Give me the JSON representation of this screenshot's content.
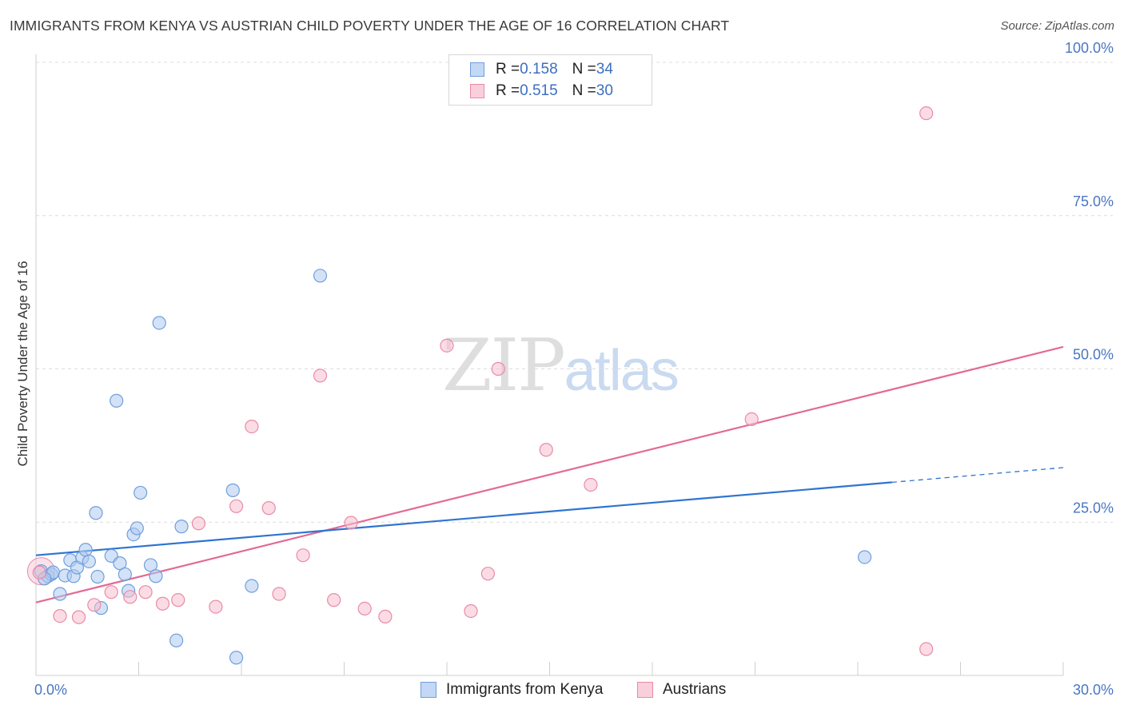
{
  "title": "IMMIGRANTS FROM KENYA VS AUSTRIAN CHILD POVERTY UNDER THE AGE OF 16 CORRELATION CHART",
  "source": "Source: ZipAtlas.com",
  "watermark": {
    "zip": "ZIP",
    "atlas": "atlas"
  },
  "legend": {
    "rows": [
      {
        "r_label": "R = ",
        "r_value": "0.158",
        "n_label": "N = ",
        "n_value": "34"
      },
      {
        "r_label": "R = ",
        "r_value": "0.515",
        "n_label": "N = ",
        "n_value": "30"
      }
    ]
  },
  "bottom_legend": [
    "Immigrants from Kenya",
    "Austrians"
  ],
  "colors": {
    "blue_fill": "#aecbf1",
    "blue_stroke": "#6f9fdc",
    "blue_line": "#2f74d0",
    "pink_fill": "#f7bfd0",
    "pink_stroke": "#e98aa8",
    "pink_line": "#e36a96",
    "grid": "#dcdcdc",
    "axis_label": "#4a76c4"
  },
  "chart_data": {
    "type": "scatter",
    "title": "IMMIGRANTS FROM KENYA VS AUSTRIAN CHILD POVERTY UNDER THE AGE OF 16 CORRELATION CHART",
    "xlabel": "",
    "ylabel": "Child Poverty Under the Age of 16",
    "xlim": [
      0,
      30
    ],
    "ylim": [
      0,
      100
    ],
    "x_tick_labels": [
      "0.0%",
      "30.0%"
    ],
    "y_ticks": [
      25,
      50,
      75,
      100
    ],
    "y_tick_labels": [
      "25.0%",
      "50.0%",
      "75.0%",
      "100.0%"
    ],
    "grid": true,
    "legend_position": "top-center",
    "series": [
      {
        "name": "Immigrants from Kenya",
        "R": 0.158,
        "N": 34,
        "points": [
          [
            0.15,
            17.0
          ],
          [
            0.35,
            16.2
          ],
          [
            0.45,
            16.5
          ],
          [
            0.5,
            16.8
          ],
          [
            0.7,
            13.3
          ],
          [
            0.85,
            16.3
          ],
          [
            1.0,
            18.8
          ],
          [
            1.1,
            16.2
          ],
          [
            1.2,
            17.6
          ],
          [
            1.35,
            19.2
          ],
          [
            1.45,
            20.5
          ],
          [
            1.55,
            18.6
          ],
          [
            1.75,
            26.5
          ],
          [
            1.8,
            16.1
          ],
          [
            1.9,
            11.0
          ],
          [
            2.2,
            19.5
          ],
          [
            2.35,
            44.8
          ],
          [
            2.45,
            18.3
          ],
          [
            2.6,
            16.5
          ],
          [
            2.7,
            13.8
          ],
          [
            2.85,
            23.0
          ],
          [
            2.95,
            24.0
          ],
          [
            3.05,
            29.8
          ],
          [
            3.35,
            18.0
          ],
          [
            3.5,
            16.2
          ],
          [
            3.6,
            57.5
          ],
          [
            4.1,
            5.7
          ],
          [
            4.25,
            24.3
          ],
          [
            5.75,
            30.2
          ],
          [
            5.85,
            2.9
          ],
          [
            6.3,
            14.6
          ],
          [
            8.3,
            65.2
          ],
          [
            24.2,
            19.3
          ],
          [
            0.25,
            15.8
          ]
        ]
      },
      {
        "name": "Austrians",
        "R": 0.515,
        "N": 30,
        "points": [
          [
            0.1,
            16.8
          ],
          [
            0.7,
            9.7
          ],
          [
            1.25,
            9.5
          ],
          [
            1.7,
            11.5
          ],
          [
            2.2,
            13.6
          ],
          [
            2.75,
            12.8
          ],
          [
            3.2,
            13.6
          ],
          [
            3.7,
            11.7
          ],
          [
            4.15,
            12.3
          ],
          [
            4.75,
            24.8
          ],
          [
            5.25,
            11.2
          ],
          [
            5.85,
            27.6
          ],
          [
            6.3,
            40.6
          ],
          [
            6.8,
            27.3
          ],
          [
            7.1,
            13.3
          ],
          [
            7.8,
            19.6
          ],
          [
            8.3,
            48.9
          ],
          [
            8.7,
            12.3
          ],
          [
            9.2,
            24.9
          ],
          [
            9.6,
            10.9
          ],
          [
            10.2,
            9.6
          ],
          [
            12.0,
            53.8
          ],
          [
            12.7,
            10.5
          ],
          [
            13.2,
            16.6
          ],
          [
            13.5,
            50.0
          ],
          [
            14.9,
            36.8
          ],
          [
            16.2,
            31.1
          ],
          [
            20.9,
            41.8
          ],
          [
            26.0,
            91.7
          ],
          [
            26.0,
            4.3
          ]
        ]
      }
    ],
    "trendlines": [
      {
        "series": "Immigrants from Kenya",
        "x": [
          0,
          25
        ],
        "y": [
          19.6,
          31.5
        ],
        "dashed_to": [
          30,
          33.9
        ]
      },
      {
        "series": "Austrians",
        "x": [
          0,
          30
        ],
        "y": [
          11.9,
          53.6
        ]
      }
    ]
  }
}
